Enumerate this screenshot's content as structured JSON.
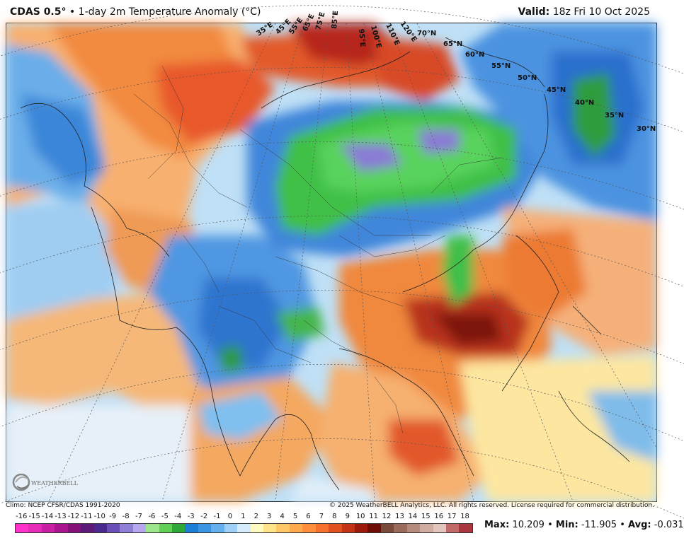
{
  "header": {
    "model": "CDAS 0.5°",
    "separator": "•",
    "field": "1-day 2m Temperature Anomaly (°C)",
    "valid_label": "Valid:",
    "valid_value": "18z Fri 10 Oct 2025"
  },
  "map": {
    "latitude_labels": [
      "70°N",
      "65°N",
      "60°N",
      "55°N",
      "50°N",
      "45°N",
      "40°N",
      "35°N",
      "30°N"
    ],
    "longitude_labels": [
      "35°E",
      "45°E",
      "55°E",
      "65°E",
      "75°E",
      "85°E",
      "95°E",
      "100°E",
      "110°E",
      "120°E"
    ]
  },
  "logo": {
    "text": "WEATHERBELL"
  },
  "footer": {
    "climo": "Climo: NCEP CFSR/CDAS 1991-2020",
    "copyright": "© 2025 WeatherBELL Analytics, LLC. All rights reserved. License required for commercial distribution."
  },
  "colorbar": {
    "ticks": [
      "-16",
      "-15",
      "-14",
      "-13",
      "-12",
      "-11",
      "-10",
      "-9",
      "-8",
      "-7",
      "-6",
      "-5",
      "-4",
      "-3",
      "-2",
      "-1",
      "0",
      "1",
      "2",
      "3",
      "4",
      "5",
      "6",
      "7",
      "8",
      "9",
      "10",
      "11",
      "12",
      "13",
      "14",
      "15",
      "16",
      "17",
      "18"
    ],
    "colors": [
      "#ff33cc",
      "#e62bb8",
      "#c81fa3",
      "#a8158e",
      "#851078",
      "#5e1a78",
      "#4b2a8f",
      "#6a4fb6",
      "#8f7fd6",
      "#b7a7ee",
      "#9ce68c",
      "#5fcf55",
      "#2fa83a",
      "#1c7fd6",
      "#3a96e2",
      "#64b0ee",
      "#9fd0f6",
      "#d4ecfb",
      "#fff9c2",
      "#ffe48a",
      "#ffc867",
      "#ffab4d",
      "#ff8f3a",
      "#f5702b",
      "#e0521f",
      "#c23415",
      "#9b1a0c",
      "#6e0d06",
      "#7a4a3a",
      "#9a6a5a",
      "#b58b7d",
      "#cfaba0",
      "#e2c6bd",
      "#c26a6a",
      "#a8373f"
    ]
  },
  "stats": {
    "max_label": "Max:",
    "max_value": "10.209",
    "min_label": "Min:",
    "min_value": "-11.905",
    "avg_label": "Avg:",
    "avg_value": "-0.031"
  }
}
